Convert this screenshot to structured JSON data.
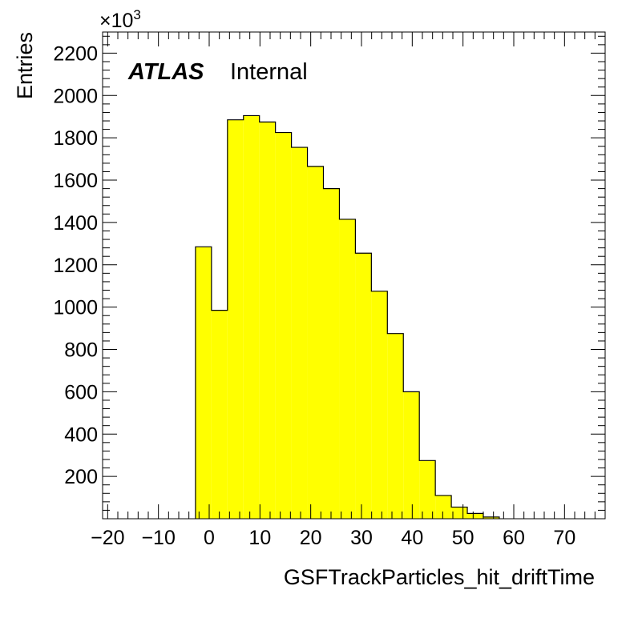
{
  "chart_data": {
    "type": "bar",
    "style": "histogram",
    "fill_color": "#ffff00",
    "edge_color": "#000000",
    "xlabel": "GSFTrackParticles_hit_driftTime",
    "ylabel": "Entries",
    "y_multiplier_label": "×10",
    "y_multiplier_exponent": "3",
    "xlim": [
      -21,
      78
    ],
    "ylim": [
      0,
      2300
    ],
    "x_ticks": [
      -20,
      -10,
      0,
      10,
      20,
      30,
      40,
      50,
      60,
      70
    ],
    "x_tick_labels": [
      "−20",
      "−10",
      "0",
      "10",
      "20",
      "30",
      "40",
      "50",
      "60",
      "70"
    ],
    "y_ticks": [
      200,
      400,
      600,
      800,
      1000,
      1200,
      1400,
      1600,
      1800,
      2000,
      2200
    ],
    "y_tick_labels": [
      "200",
      "400",
      "600",
      "800",
      "1000",
      "1200",
      "1400",
      "1600",
      "1800",
      "2000",
      "2200"
    ],
    "bin_edges": [
      -2.7,
      0.45,
      3.6,
      6.75,
      9.9,
      13.05,
      16.2,
      19.35,
      22.5,
      25.65,
      28.8,
      31.95,
      35.1,
      38.25,
      41.4,
      44.55,
      47.7,
      50.85,
      54.0,
      57.15
    ],
    "values": [
      1285,
      985,
      1885,
      1905,
      1875,
      1825,
      1755,
      1665,
      1560,
      1415,
      1255,
      1075,
      875,
      600,
      275,
      110,
      55,
      25,
      8
    ],
    "annotation": {
      "bold_text": "ATLAS",
      "text": "Internal"
    },
    "grid": false,
    "legend": "none"
  }
}
